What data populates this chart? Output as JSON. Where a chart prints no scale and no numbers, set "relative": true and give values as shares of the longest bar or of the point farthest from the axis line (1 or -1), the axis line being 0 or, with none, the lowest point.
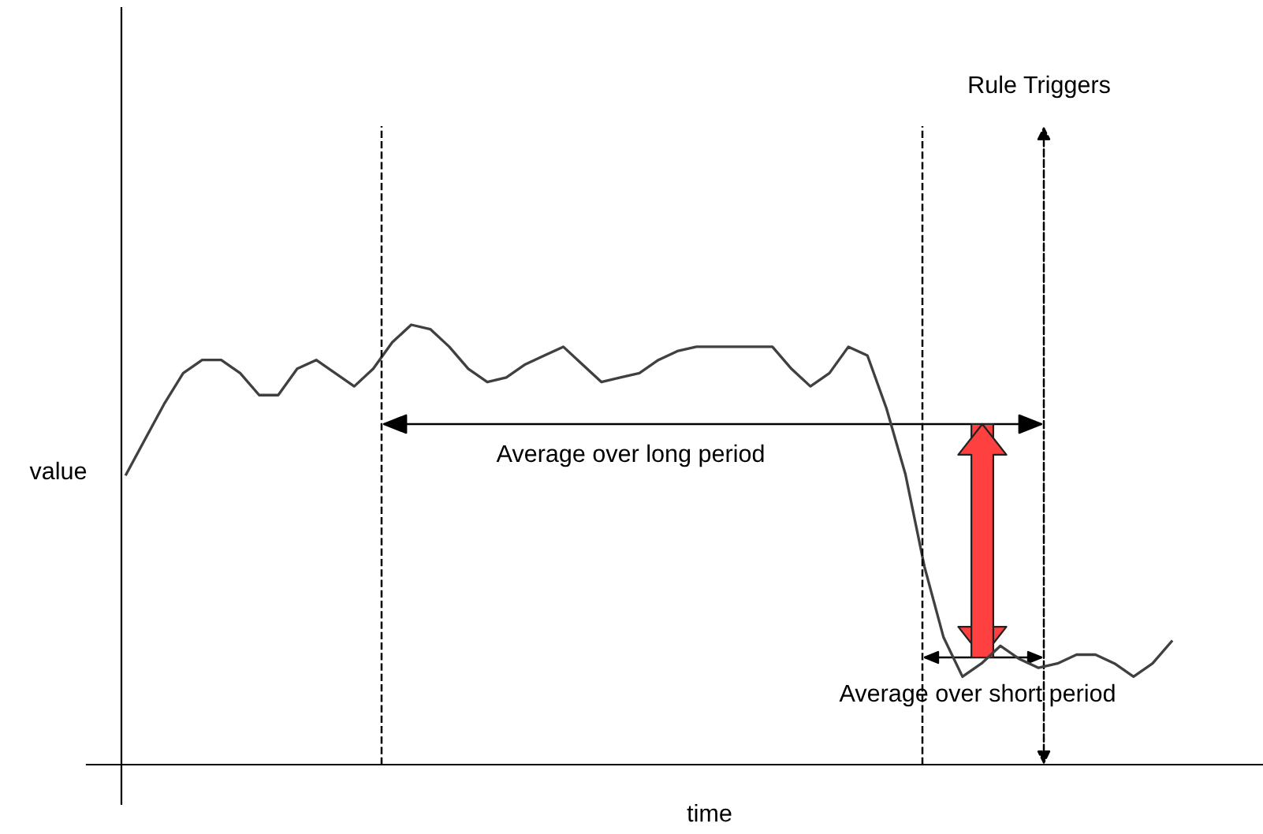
{
  "chart_data": {
    "type": "line",
    "relative": true,
    "xlabel": "time",
    "ylabel": "value",
    "categories": [
      null,
      null,
      null,
      null,
      null,
      null,
      null,
      null,
      null,
      null,
      null,
      null,
      null,
      null,
      null,
      null,
      null,
      null,
      null,
      null,
      null,
      null,
      null,
      null,
      null,
      null,
      null,
      null,
      null,
      null,
      null,
      null,
      null,
      null,
      null,
      null,
      null,
      null,
      null,
      null,
      null,
      null,
      null,
      null,
      null,
      null,
      null,
      null,
      null,
      null,
      null,
      null,
      null,
      null,
      null,
      null
    ],
    "series": [
      {
        "color": "#404040",
        "values": [
          0.66,
          0.74,
          0.82,
          0.89,
          0.92,
          0.92,
          0.89,
          0.84,
          0.84,
          0.9,
          0.92,
          0.89,
          0.86,
          0.9,
          0.96,
          1.0,
          0.99,
          0.95,
          0.9,
          0.87,
          0.88,
          0.91,
          0.93,
          0.95,
          0.91,
          0.87,
          0.88,
          0.89,
          0.92,
          0.94,
          0.95,
          0.95,
          0.95,
          0.95,
          0.95,
          0.9,
          0.86,
          0.89,
          0.95,
          0.93,
          0.81,
          0.66,
          0.45,
          0.29,
          0.2,
          0.23,
          0.27,
          0.24,
          0.22,
          0.23,
          0.25,
          0.25,
          0.23,
          0.2,
          0.23,
          0.28
        ]
      }
    ],
    "annotations": [
      "Average over long period",
      "Average over short period",
      "Rule Triggers"
    ],
    "marker": "none",
    "line_style": "solid",
    "tick_labels": false
  }
}
